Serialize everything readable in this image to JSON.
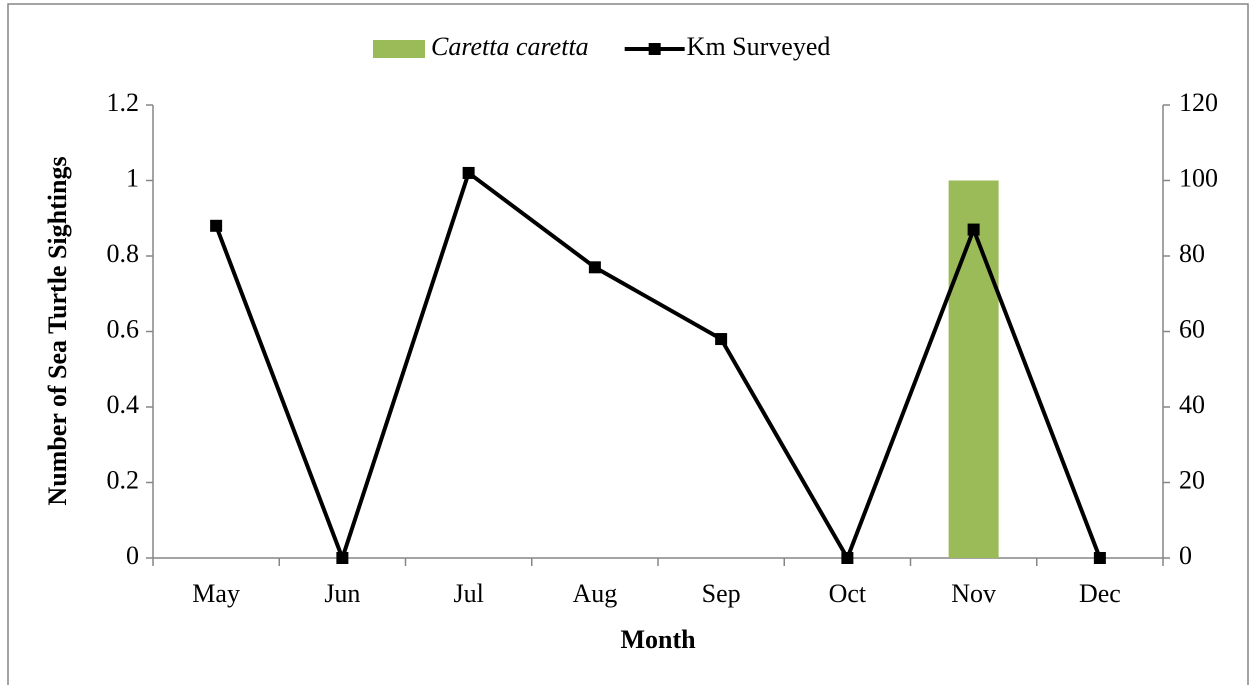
{
  "chart_data": {
    "type": "combo",
    "x_label": "Month",
    "y_label": "Number of Sea Turtle Sightings",
    "categories": [
      "May",
      "Jun",
      "Jul",
      "Aug",
      "Sep",
      "Oct",
      "Nov",
      "Dec"
    ],
    "series": [
      {
        "name": "Caretta caretta",
        "type": "bar",
        "color": "#9bbb59",
        "values": [
          0,
          0,
          0,
          0,
          0,
          0,
          1,
          0
        ]
      },
      {
        "name": "Km Surveyed",
        "type": "line",
        "axis": "y2",
        "color": "#000000",
        "values": [
          88,
          0,
          102,
          77,
          58,
          0,
          87,
          0
        ]
      }
    ],
    "ylim": [
      0,
      1.2
    ],
    "yticks": [
      0,
      0.2,
      0.4,
      0.6,
      0.8,
      1,
      1.2
    ],
    "y2lim": [
      0,
      120
    ],
    "y2ticks": [
      0,
      20,
      40,
      60,
      80,
      100,
      120
    ],
    "legend": "top",
    "grid": false
  }
}
